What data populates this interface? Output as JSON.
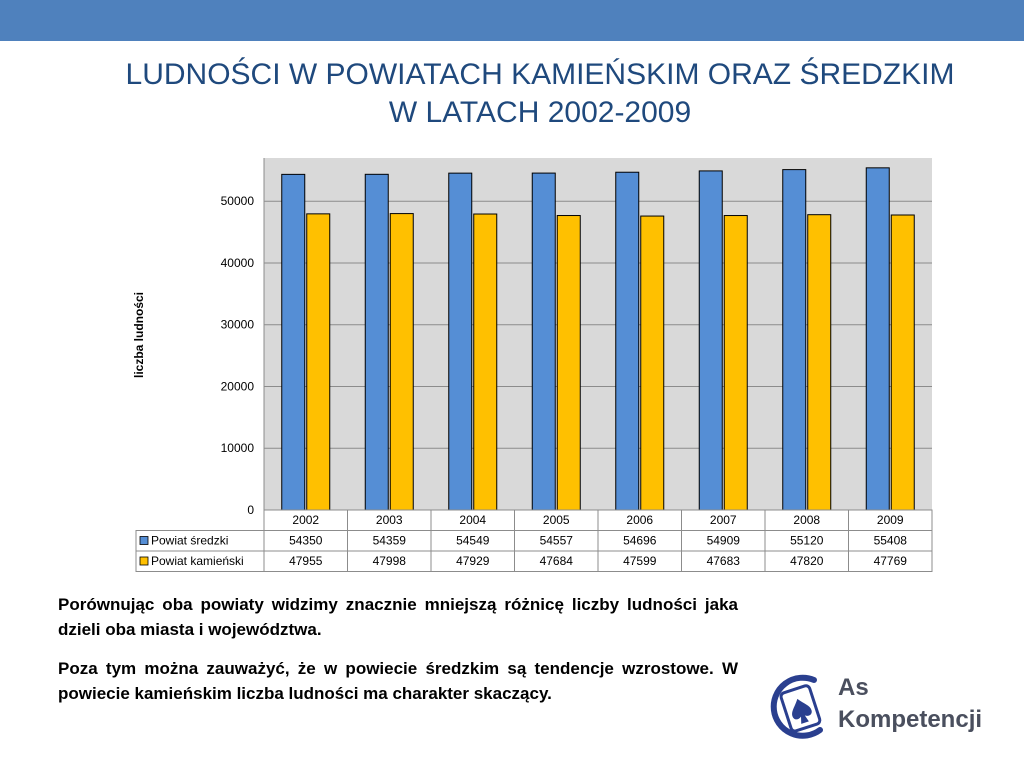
{
  "slide": {
    "title_line1": "LUDNOŚCI W POWIATACH KAMIEŃSKIM ORAZ ŚREDZKIM",
    "title_line2": "W LATACH 2002-2009",
    "paragraph1": "Porównując oba powiaty widzimy znacznie mniejszą różnicę liczby ludności jaka dzieli oba miasta i województwa.",
    "paragraph2": "Poza tym można zauważyć, że w powiecie średzkim są tendencje wzrostowe. W powiecie kamieńskim liczba ludności ma charakter skaczący.",
    "colors": {
      "bar_top": "#4f81bd",
      "title": "#1f497d"
    }
  },
  "logo": {
    "line1": "As",
    "line2": "Kompetencji",
    "icon": "spade-icon"
  },
  "chart_data": {
    "type": "bar",
    "categories": [
      "2002",
      "2003",
      "2004",
      "2005",
      "2006",
      "2007",
      "2008",
      "2009"
    ],
    "series": [
      {
        "name": "Powiat średzki",
        "color": "#558ed5",
        "values": [
          54350,
          54359,
          54549,
          54557,
          54696,
          54909,
          55120,
          55408
        ]
      },
      {
        "name": "Powiat kamieński",
        "color": "#ffc000",
        "values": [
          47955,
          47998,
          47929,
          47684,
          47599,
          47683,
          47820,
          47769
        ]
      }
    ],
    "ylabel": "liczba ludności",
    "ylim": [
      0,
      57000
    ],
    "yticks": [
      "0",
      "10000",
      "20000",
      "30000",
      "40000",
      "50000"
    ],
    "grid": true,
    "legend": "data-table"
  }
}
